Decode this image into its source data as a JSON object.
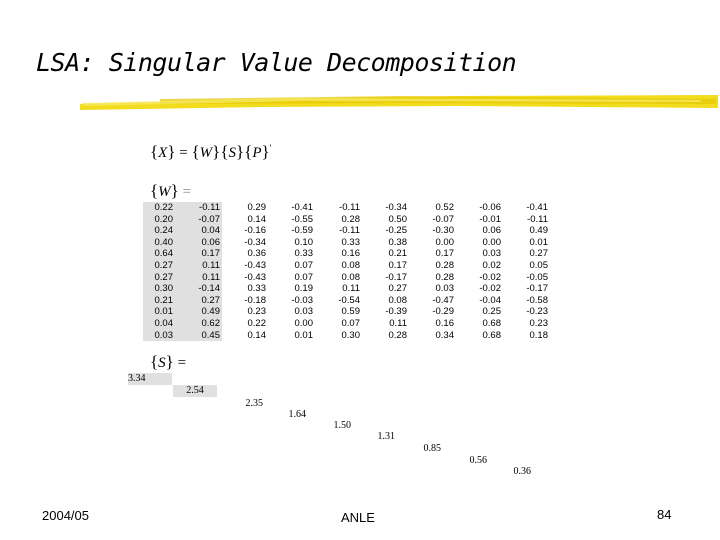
{
  "title": "LSA: Singular Value Decomposition",
  "equation_main": {
    "lhs": "X",
    "eq": "=",
    "f1": "W",
    "f2": "S",
    "f3": "P",
    "prime": "'"
  },
  "equation_w": {
    "var": "W",
    "eq": "="
  },
  "equation_s": {
    "var": "S",
    "eq": "="
  },
  "w_matrix": [
    [
      "0.22",
      "-0.11",
      "0.29",
      "-0.41",
      "-0.11",
      "-0.34",
      "0.52",
      "-0.06",
      "-0.41"
    ],
    [
      "0.20",
      "-0.07",
      "0.14",
      "-0.55",
      "0.28",
      "0.50",
      "-0.07",
      "-0.01",
      "-0.11"
    ],
    [
      "0.24",
      "0.04",
      "-0.16",
      "-0.59",
      "-0.11",
      "-0.25",
      "-0.30",
      "0.06",
      "0.49"
    ],
    [
      "0.40",
      "0.06",
      "-0.34",
      "0.10",
      "0.33",
      "0.38",
      "0.00",
      "0.00",
      "0.01"
    ],
    [
      "0.64",
      "0.17",
      "0.36",
      "0.33",
      "0.16",
      "0.21",
      "0.17",
      "0.03",
      "0.27"
    ],
    [
      "0.27",
      "0.11",
      "-0.43",
      "0.07",
      "0.08",
      "0.17",
      "0.28",
      "0.02",
      "0.05"
    ],
    [
      "0.27",
      "0.11",
      "-0.43",
      "0.07",
      "0.08",
      "-0.17",
      "0.28",
      "-0.02",
      "-0.05"
    ],
    [
      "0.30",
      "-0.14",
      "0.33",
      "0.19",
      "0.11",
      "0.27",
      "0.03",
      "-0.02",
      "-0.17"
    ],
    [
      "0.21",
      "0.27",
      "-0.18",
      "-0.03",
      "-0.54",
      "0.08",
      "-0.47",
      "-0.04",
      "-0.58"
    ],
    [
      "0.01",
      "0.49",
      "0.23",
      "0.03",
      "0.59",
      "-0.39",
      "-0.29",
      "0.25",
      "-0.23"
    ],
    [
      "0.04",
      "0.62",
      "0.22",
      "0.00",
      "0.07",
      "0.11",
      "0.16",
      "0.68",
      "0.23"
    ],
    [
      "0.03",
      "0.45",
      "0.14",
      "0.01",
      "0.30",
      "0.28",
      "0.34",
      "0.68",
      "0.18"
    ]
  ],
  "s_values": [
    "3.34",
    "2.54",
    "2.35",
    "1.64",
    "1.50",
    "1.31",
    "0.85",
    "0.56",
    "0.36"
  ],
  "footer": {
    "date": "2004/05",
    "center": "ANLE",
    "page": "84"
  }
}
